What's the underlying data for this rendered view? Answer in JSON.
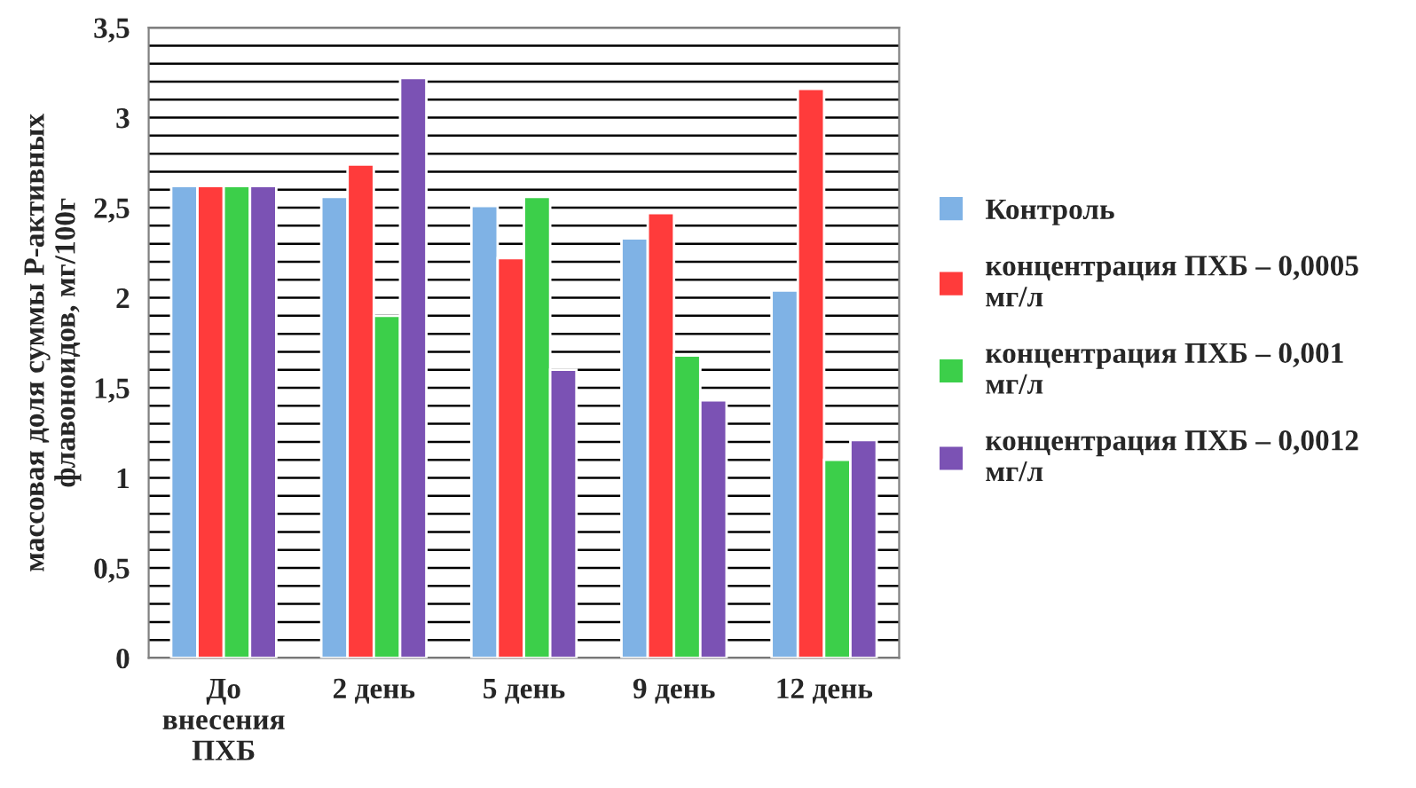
{
  "chart_data": {
    "type": "bar",
    "ylabel": "массовая доля суммы Р-активных флавоноидов, мг/100г",
    "categories": [
      "До\nвнесения\nПХБ",
      "2 день",
      "5 день",
      "9 день",
      "12 день"
    ],
    "series": [
      {
        "name": "Контроль",
        "color": "#7fb2e5",
        "values": [
          2.62,
          2.56,
          2.51,
          2.33,
          2.04
        ]
      },
      {
        "name": "концентрация ПХБ – 0,0005\nмг/л",
        "color": "#ff3b3b",
        "values": [
          2.62,
          2.74,
          2.22,
          2.47,
          3.16
        ]
      },
      {
        "name": "концентрация ПХБ – 0,001\nмг/л",
        "color": "#3ccf4a",
        "values": [
          2.62,
          1.9,
          2.56,
          1.68,
          1.1
        ]
      },
      {
        "name": "концентрация ПХБ – 0,0012\nмг/л",
        "color": "#7b52b4",
        "values": [
          2.62,
          3.22,
          1.6,
          1.43,
          1.21
        ]
      }
    ],
    "ylim": [
      0,
      3.5
    ],
    "yticks": [
      0,
      {
        "value": 0.1,
        "label": null
      },
      {
        "value": 0.2,
        "label": null
      },
      {
        "value": 0.3,
        "label": null
      },
      {
        "value": 0.4,
        "label": null
      },
      {
        "value": 0.5,
        "label": "0,5"
      },
      {
        "value": 0.6,
        "label": null
      },
      {
        "value": 0.7,
        "label": null
      },
      {
        "value": 0.8,
        "label": null
      },
      {
        "value": 0.9,
        "label": null
      },
      1,
      {
        "value": 1.1,
        "label": null
      },
      {
        "value": 1.2,
        "label": null
      },
      {
        "value": 1.3,
        "label": null
      },
      {
        "value": 1.4,
        "label": null
      },
      {
        "value": 1.5,
        "label": "1,5"
      },
      {
        "value": 1.6,
        "label": null
      },
      {
        "value": 1.7,
        "label": null
      },
      {
        "value": 1.8,
        "label": null
      },
      {
        "value": 1.9,
        "label": null
      },
      2,
      {
        "value": 2.1,
        "label": null
      },
      {
        "value": 2.2,
        "label": null
      },
      {
        "value": 2.3,
        "label": null
      },
      {
        "value": 2.4,
        "label": null
      },
      {
        "value": 2.5,
        "label": "2,5"
      },
      {
        "value": 2.6,
        "label": null
      },
      {
        "value": 2.7,
        "label": null
      },
      {
        "value": 2.8,
        "label": null
      },
      {
        "value": 2.9,
        "label": null
      },
      3,
      {
        "value": 3.1,
        "label": null
      },
      {
        "value": 3.2,
        "label": null
      },
      {
        "value": 3.3,
        "label": null
      },
      {
        "value": 3.4,
        "label": null
      },
      {
        "value": 3.5,
        "label": "3,5"
      }
    ],
    "grid": "y",
    "legend": "right"
  }
}
